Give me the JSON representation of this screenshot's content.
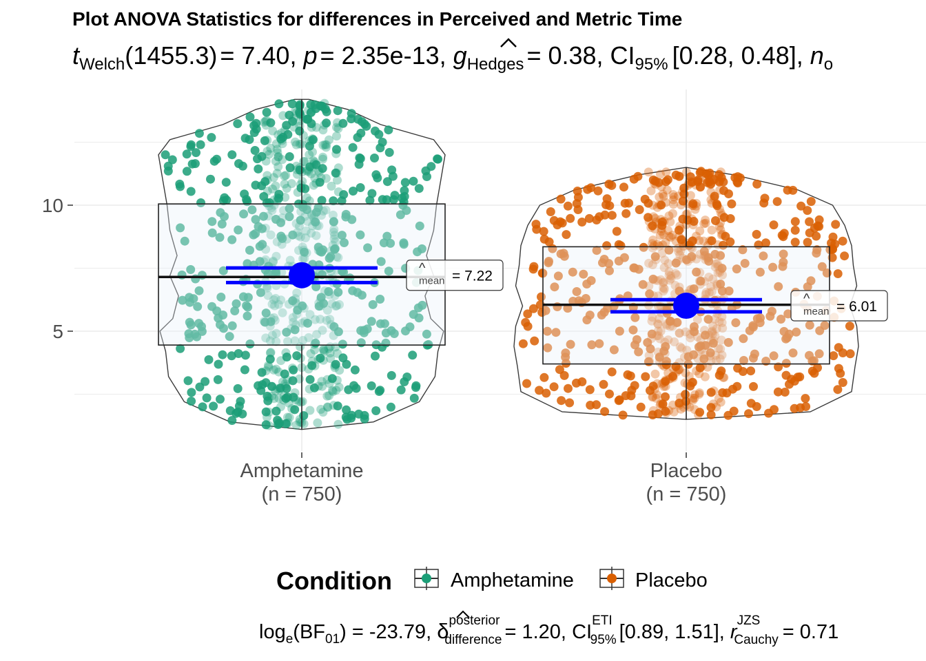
{
  "chart_data": {
    "type": "violin-box-scatter",
    "title": "Plot ANOVA Statistics for differences in Perceived and Metric Time",
    "subtitle": {
      "t_label": "t",
      "t_sub": "Welch",
      "df": "(1455.3)",
      "t_value": "= 7.40,",
      "p_label": "p",
      "p_value": "= 2.35e-13,",
      "g_label": "g",
      "g_sub": "Hedges",
      "g_value": "= 0.38,",
      "ci_label": "CI",
      "ci_sub": "95%",
      "ci_value": "[0.28, 0.48],",
      "n_label": "n",
      "n_sub": "o"
    },
    "ylim": [
      0.6,
      14.2
    ],
    "yticks": [
      5,
      10
    ],
    "grid": true,
    "categories": [
      "Amphetamine",
      "Placebo"
    ],
    "category_counts": [
      "(n = 750)",
      "(n = 750)"
    ],
    "groups": [
      {
        "name": "Amphetamine",
        "n": 750,
        "color": "#1b9e77",
        "box": {
          "q1": 4.45,
          "median": 7.15,
          "q3": 10.05
        },
        "mean": 7.22,
        "ci": [
          6.93,
          7.51
        ],
        "whisker": [
          1.1,
          14.2
        ],
        "mean_label": "= 7.22",
        "mean_sym": "mean"
      },
      {
        "name": "Placebo",
        "n": 750,
        "color": "#d95f02",
        "box": {
          "q1": 3.7,
          "median": 6.05,
          "q3": 8.35
        },
        "mean": 6.01,
        "ci": [
          5.77,
          6.25
        ],
        "whisker": [
          1.5,
          11.5
        ],
        "mean_label": "= 6.01",
        "mean_sym": "mean"
      }
    ],
    "legend": {
      "title": "Condition",
      "position": "bottom",
      "items": [
        {
          "label": "Amphetamine",
          "color": "#1b9e77"
        },
        {
          "label": "Placebo",
          "color": "#d95f02"
        }
      ]
    },
    "caption": {
      "log_label": "log",
      "log_sub": "e",
      "bf_label": "(BF",
      "bf_sub": "01",
      "bf_value": ") = -23.79,",
      "delta_label": "δ",
      "delta_sup": "posterior",
      "delta_sub": "difference",
      "delta_value": "= 1.20,",
      "ci_label": "CI",
      "ci_sup": "ETI",
      "ci_sub": "95%",
      "ci_value": "[0.89, 1.51],",
      "r_label": "r",
      "r_sup": "JZS",
      "r_sub": "Cauchy",
      "r_value": "= 0.71"
    },
    "colors": {
      "mean_point": "#0000ff",
      "box_fill": "#e8f0f8",
      "violin": "#3a3a3a",
      "grid": "#ebebeb"
    }
  }
}
